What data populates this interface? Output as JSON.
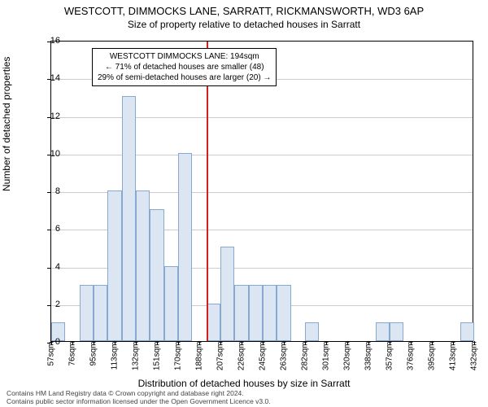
{
  "title": "WESTCOTT, DIMMOCKS LANE, SARRATT, RICKMANSWORTH, WD3 6AP",
  "subtitle": "Size of property relative to detached houses in Sarratt",
  "ylabel": "Number of detached properties",
  "xlabel": "Distribution of detached houses by size in Sarratt",
  "chart": {
    "type": "histogram",
    "background_color": "#ffffff",
    "grid_color": "#cccccc",
    "axis_color": "#000000",
    "bar_fill": "#dce6f2",
    "bar_border": "#87a8d0",
    "marker_color": "#d02020",
    "ylim": [
      0,
      16
    ],
    "ytick_step": 2,
    "yticks": [
      0,
      2,
      4,
      6,
      8,
      10,
      12,
      14,
      16
    ],
    "xticks": [
      "57sqm",
      "76sqm",
      "95sqm",
      "113sqm",
      "132sqm",
      "151sqm",
      "170sqm",
      "188sqm",
      "207sqm",
      "226sqm",
      "245sqm",
      "263sqm",
      "282sqm",
      "301sqm",
      "320sqm",
      "338sqm",
      "357sqm",
      "376sqm",
      "395sqm",
      "413sqm",
      "432sqm"
    ],
    "values": [
      1,
      0,
      3,
      3,
      8,
      13,
      8,
      7,
      4,
      10,
      0,
      2,
      5,
      3,
      3,
      3,
      3,
      0,
      1,
      0,
      0,
      0,
      0,
      1,
      1,
      0,
      0,
      0,
      0,
      1
    ],
    "marker_bin_index": 11,
    "label_fontsize": 12,
    "tick_fontsize": 11,
    "xtick_fontsize": 10
  },
  "annotation": {
    "line1": "WESTCOTT DIMMOCKS LANE: 194sqm",
    "line2": "← 71% of detached houses are smaller (48)",
    "line3": "29% of semi-detached houses are larger (20) →"
  },
  "footer": {
    "line1": "Contains HM Land Registry data © Crown copyright and database right 2024.",
    "line2": "Contains public sector information licensed under the Open Government Licence v3.0."
  }
}
